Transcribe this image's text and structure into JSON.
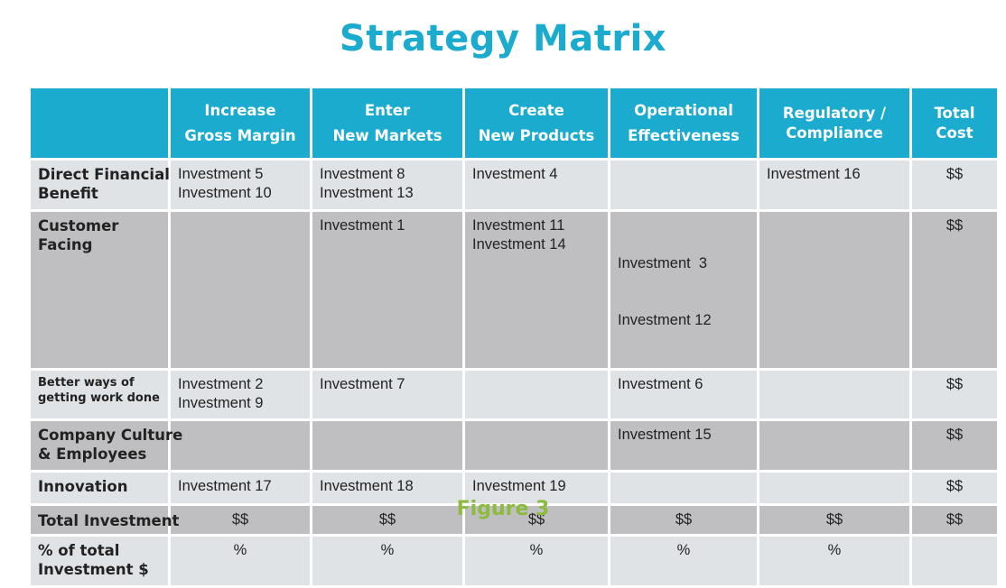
{
  "title": "Strategy Matrix",
  "caption": "Figure 3",
  "columns": [
    {
      "line1": "",
      "line2": ""
    },
    {
      "line1": "Increase",
      "line2": "Gross Margin"
    },
    {
      "line1": "Enter",
      "line2": "New Markets"
    },
    {
      "line1": "Create",
      "line2": "New Products"
    },
    {
      "line1": "Operational",
      "line2": "Effectiveness"
    },
    {
      "line1": "Regulatory /",
      "line2": "Compliance"
    },
    {
      "line1": "Total",
      "line2": "Cost"
    }
  ],
  "rows": [
    {
      "label1": "Direct Financial",
      "label2": "Benefit",
      "cells": [
        [
          "Investment 5",
          "Investment 10"
        ],
        [
          "Investment 8",
          "Investment 13"
        ],
        [
          "Investment 4"
        ],
        [],
        [
          "Investment 16"
        ]
      ],
      "total": "$$"
    },
    {
      "label1": "Customer",
      "label2": "Facing",
      "cells": [
        [],
        [
          "Investment 1"
        ],
        [
          "Investment 11",
          "Investment 14"
        ],
        [
          "Investment  3",
          "Investment 12"
        ],
        []
      ],
      "total": "$$"
    },
    {
      "label1": "Better ways of",
      "label2": "getting work done",
      "cells": [
        [
          "Investment 2",
          "Investment 9"
        ],
        [
          "Investment 7"
        ],
        [],
        [
          "Investment 6"
        ],
        []
      ],
      "total": "$$"
    },
    {
      "label1": "Company Culture",
      "label2": "& Employees",
      "cells": [
        [],
        [],
        [],
        [
          "Investment 15"
        ],
        []
      ],
      "total": "$$"
    },
    {
      "label1": "Innovation",
      "label2": "",
      "cells": [
        [
          "Investment 17"
        ],
        [
          "Investment 18"
        ],
        [
          "Investment 19"
        ],
        [],
        []
      ],
      "total": "$$"
    }
  ],
  "total_investment": {
    "label": "Total Investment",
    "values": [
      "$$",
      "$$",
      "$$",
      "$$",
      "$$",
      "$$"
    ]
  },
  "percent_total": {
    "label1": "% of total",
    "label2": "Investment $",
    "values": [
      "%",
      "%",
      "%",
      "%",
      "%",
      ""
    ]
  }
}
